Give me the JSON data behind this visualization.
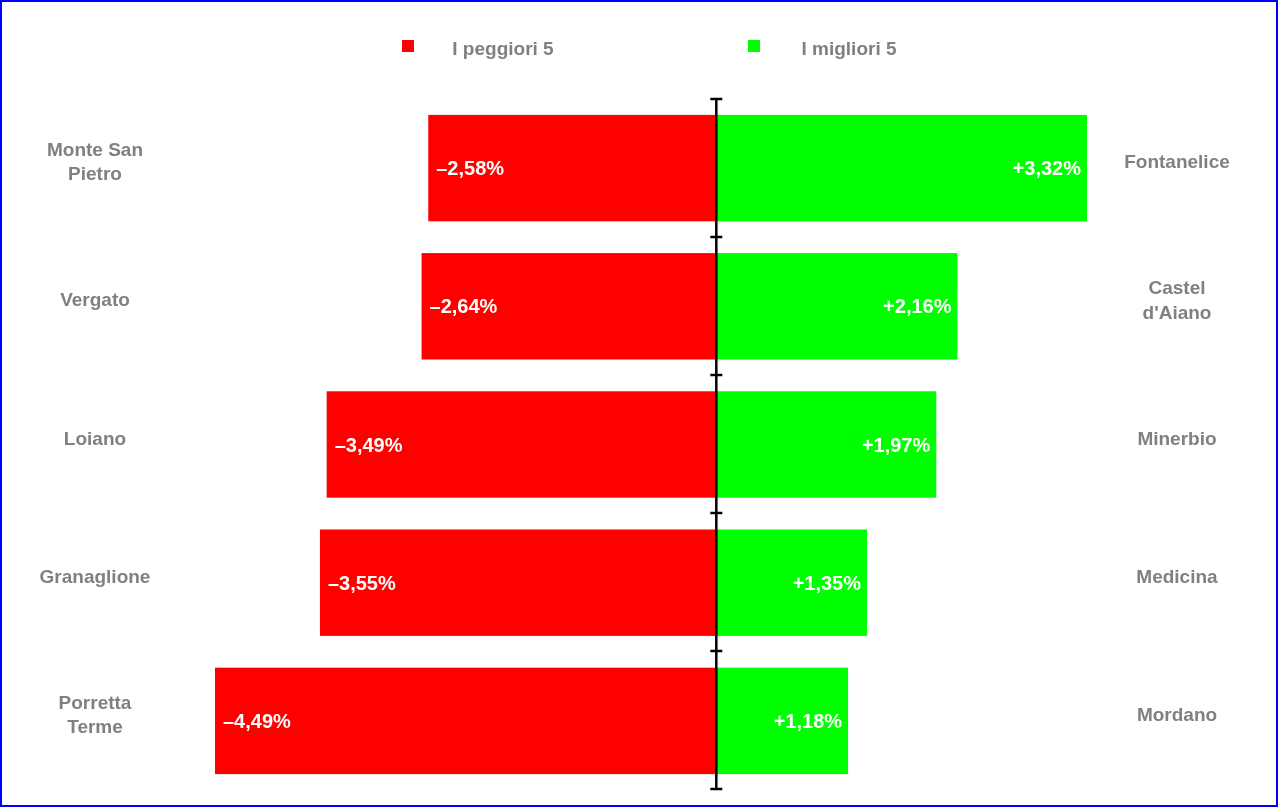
{
  "chart_data": {
    "type": "bar",
    "orientation": "horizontal",
    "categories": [
      "Monte San Pietro",
      "Vergato",
      "Loiano",
      "Granaglione",
      "Porretta Terme"
    ],
    "y2_categories": [
      "Fontanelice",
      "Castel d'Aiano",
      "Minerbio",
      "Medicina",
      "Mordano"
    ],
    "stacked": true,
    "tick_labels": "y",
    "legend": "top",
    "series": [
      {
        "name": "I peggiori 5",
        "color": "#ff0000",
        "values": [
          -2.58,
          -2.64,
          -3.49,
          -3.55,
          -4.49
        ],
        "value_labels": [
          "–2,58%",
          "–2,64%",
          "–3,49%",
          "–3,55%",
          "–4,49%"
        ]
      },
      {
        "name": "I migliori 5",
        "color": "#00ff00",
        "values": [
          3.32,
          2.16,
          1.97,
          1.35,
          1.18
        ],
        "value_labels": [
          "+3,32%",
          "+2,16%",
          "+1,97%",
          "+1,35%",
          "+1,18%"
        ]
      }
    ]
  }
}
